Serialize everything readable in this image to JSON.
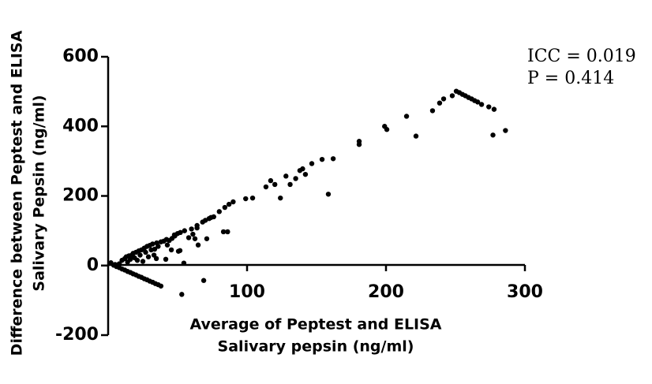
{
  "chart_data": {
    "type": "scatter",
    "y_label": [
      "Difference between Peptest and ELISA",
      "Salivary Pepsin (ng/ml)"
    ],
    "x_label": [
      "Average of Peptest and ELISA",
      "Salivary pepsin (ng/ml)"
    ],
    "annotations": [
      "ICC = 0.019",
      "P = 0.414"
    ],
    "color": "#000000",
    "xlim": [
      0,
      300
    ],
    "xticks": [
      100,
      200,
      300
    ],
    "ylim": [
      -200,
      600
    ],
    "yticks": [
      -200,
      0,
      200,
      400,
      600
    ],
    "x": [
      4,
      6,
      8,
      10,
      12,
      14,
      16,
      18,
      20,
      22,
      24,
      26,
      28,
      30,
      32,
      34,
      36,
      38,
      8,
      10,
      12,
      13,
      14,
      15,
      16,
      17,
      18,
      19,
      20,
      21,
      22,
      23,
      24,
      25,
      26,
      27,
      28,
      29,
      30,
      31,
      32,
      33,
      35,
      36,
      38,
      40,
      42,
      44,
      46,
      48,
      50,
      52,
      55,
      58,
      60,
      64,
      68,
      70,
      76,
      80,
      2,
      5,
      47.7,
      64,
      72.7,
      74,
      84,
      87,
      90,
      99,
      104,
      113.6,
      117,
      120,
      124,
      128,
      131,
      135,
      138,
      140,
      142,
      146.6,
      154,
      162,
      158.5,
      180.7,
      180.7,
      199,
      200.6,
      214.8,
      221.6,
      233.5,
      238.6,
      241.5,
      247.7,
      250.6,
      252.8,
      255,
      257.1,
      259.4,
      261.6,
      263.8,
      266,
      268.8,
      274,
      277.8,
      277,
      286,
      53,
      68.8,
      54.5,
      50.6,
      62.5,
      64.8,
      71,
      83,
      86,
      41.5,
      45.5,
      51.7,
      33.5,
      34.7,
      42.6,
      61
    ],
    "y": [
      1,
      -3,
      -6,
      -10,
      -13,
      -17,
      -20,
      -24,
      -27,
      -31,
      -34,
      -38,
      -41,
      -45,
      -48,
      -52,
      -55,
      -59,
      5,
      15,
      20,
      25,
      10,
      28,
      18,
      30,
      35,
      22,
      38,
      15,
      42,
      30,
      45,
      12,
      50,
      38,
      55,
      25,
      58,
      45,
      62,
      30,
      65,
      55,
      68,
      70,
      75,
      72,
      78,
      85,
      92,
      95,
      100,
      80,
      105,
      115,
      125,
      130,
      140,
      155,
      8,
      3,
      88,
      108,
      135,
      138,
      167,
      176,
      183,
      192,
      194,
      226,
      244,
      233,
      194,
      257,
      233,
      250,
      273,
      278,
      262,
      293,
      305,
      307,
      205,
      357,
      348,
      400,
      391,
      429,
      372,
      445,
      467,
      479,
      488,
      501,
      497,
      492,
      488,
      483,
      479,
      474,
      470,
      463,
      456,
      449,
      375,
      388,
      -83,
      -43,
      7,
      41,
      77,
      59,
      77,
      97,
      97,
      18,
      45,
      43,
      47,
      20,
      59,
      90
    ]
  }
}
